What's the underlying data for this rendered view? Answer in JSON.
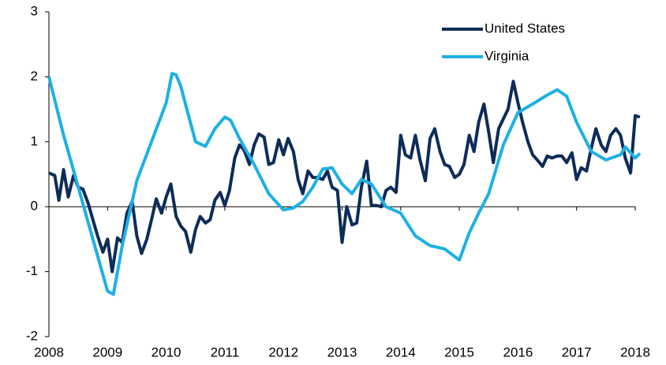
{
  "chart_data": {
    "type": "line",
    "xlim": [
      2008,
      2018
    ],
    "xticks": [
      2008,
      2009,
      2010,
      2011,
      2012,
      2013,
      2014,
      2015,
      2016,
      2017,
      2018
    ],
    "ylim": [
      -2,
      3
    ],
    "yticks": [
      -2,
      -1,
      0,
      1,
      2,
      3
    ],
    "legend": "upper right",
    "grid": false,
    "series": [
      {
        "name": "United States",
        "color": "#0e2c58",
        "x": [
          2008.0,
          2008.1,
          2008.17,
          2008.25,
          2008.33,
          2008.42,
          2008.5,
          2008.58,
          2008.67,
          2008.75,
          2008.83,
          2008.92,
          2009.0,
          2009.08,
          2009.17,
          2009.25,
          2009.33,
          2009.42,
          2009.5,
          2009.58,
          2009.67,
          2009.75,
          2009.83,
          2009.92,
          2010.0,
          2010.08,
          2010.17,
          2010.25,
          2010.33,
          2010.42,
          2010.5,
          2010.58,
          2010.67,
          2010.75,
          2010.83,
          2010.92,
          2011.0,
          2011.08,
          2011.17,
          2011.25,
          2011.33,
          2011.42,
          2011.5,
          2011.58,
          2011.67,
          2011.75,
          2011.83,
          2011.92,
          2012.0,
          2012.08,
          2012.17,
          2012.25,
          2012.33,
          2012.42,
          2012.5,
          2012.58,
          2012.67,
          2012.75,
          2012.83,
          2012.92,
          2013.0,
          2013.08,
          2013.17,
          2013.25,
          2013.33,
          2013.42,
          2013.5,
          2013.58,
          2013.67,
          2013.75,
          2013.83,
          2013.92,
          2014.0,
          2014.08,
          2014.17,
          2014.25,
          2014.33,
          2014.42,
          2014.5,
          2014.58,
          2014.67,
          2014.75,
          2014.83,
          2014.92,
          2015.0,
          2015.08,
          2015.17,
          2015.25,
          2015.33,
          2015.42,
          2015.5,
          2015.58,
          2015.67,
          2015.75,
          2015.83,
          2015.92,
          2016.0,
          2016.08,
          2016.17,
          2016.25,
          2016.33,
          2016.42,
          2016.5,
          2016.58,
          2016.67,
          2016.75,
          2016.83,
          2016.92,
          2017.0,
          2017.08,
          2017.17,
          2017.25,
          2017.33,
          2017.42,
          2017.5,
          2017.58,
          2017.67,
          2017.75,
          2017.83,
          2017.92,
          2018.0,
          2018.08
        ],
        "values": [
          0.52,
          0.48,
          0.1,
          0.57,
          0.15,
          0.48,
          0.3,
          0.27,
          0.05,
          -0.2,
          -0.45,
          -0.7,
          -0.5,
          -1.0,
          -0.48,
          -0.55,
          -0.1,
          0.08,
          -0.45,
          -0.72,
          -0.5,
          -0.2,
          0.12,
          -0.1,
          0.15,
          0.35,
          -0.15,
          -0.3,
          -0.38,
          -0.7,
          -0.35,
          -0.15,
          -0.25,
          -0.2,
          0.1,
          0.22,
          0.02,
          0.25,
          0.75,
          0.95,
          0.87,
          0.65,
          0.95,
          1.12,
          1.07,
          0.65,
          0.68,
          1.03,
          0.8,
          1.05,
          0.85,
          0.42,
          0.2,
          0.55,
          0.45,
          0.45,
          0.42,
          0.55,
          0.3,
          0.25,
          -0.55,
          0.0,
          -0.28,
          -0.25,
          0.3,
          0.7,
          0.02,
          0.02,
          0.0,
          0.25,
          0.3,
          0.22,
          1.1,
          0.8,
          0.75,
          1.1,
          0.72,
          0.4,
          1.05,
          1.2,
          0.85,
          0.65,
          0.62,
          0.45,
          0.5,
          0.65,
          1.1,
          0.85,
          1.3,
          1.58,
          1.15,
          0.68,
          1.2,
          1.35,
          1.5,
          1.93,
          1.6,
          1.3,
          1.0,
          0.8,
          0.72,
          0.62,
          0.78,
          0.75,
          0.78,
          0.78,
          0.68,
          0.83,
          0.42,
          0.6,
          0.55,
          0.9,
          1.2,
          0.95,
          0.85,
          1.1,
          1.2,
          1.1,
          0.75,
          0.52,
          1.4,
          1.38
        ]
      },
      {
        "name": "Virginia",
        "color": "#1eb0e4",
        "x": [
          2008.0,
          2008.25,
          2008.5,
          2008.75,
          2009.0,
          2009.1,
          2009.25,
          2009.5,
          2009.75,
          2010.0,
          2010.1,
          2010.17,
          2010.25,
          2010.5,
          2010.67,
          2010.83,
          2011.0,
          2011.1,
          2011.25,
          2011.5,
          2011.75,
          2012.0,
          2012.17,
          2012.33,
          2012.5,
          2012.67,
          2012.83,
          2013.0,
          2013.17,
          2013.33,
          2013.5,
          2013.75,
          2014.0,
          2014.25,
          2014.5,
          2014.75,
          2015.0,
          2015.17,
          2015.33,
          2015.5,
          2015.75,
          2016.0,
          2016.25,
          2016.5,
          2016.67,
          2016.83,
          2017.0,
          2017.25,
          2017.5,
          2017.75,
          2017.83,
          2018.0,
          2018.08
        ],
        "values": [
          2.0,
          1.1,
          0.3,
          -0.5,
          -1.3,
          -1.35,
          -0.6,
          0.4,
          1.0,
          1.6,
          2.05,
          2.03,
          1.85,
          1.0,
          0.93,
          1.2,
          1.38,
          1.33,
          1.05,
          0.65,
          0.2,
          -0.05,
          -0.02,
          0.08,
          0.3,
          0.58,
          0.6,
          0.35,
          0.2,
          0.42,
          0.35,
          0.0,
          -0.1,
          -0.45,
          -0.6,
          -0.65,
          -0.82,
          -0.4,
          -0.1,
          0.2,
          0.95,
          1.45,
          1.58,
          1.72,
          1.8,
          1.7,
          1.3,
          0.85,
          0.72,
          0.8,
          0.92,
          0.75,
          0.82
        ]
      }
    ]
  }
}
